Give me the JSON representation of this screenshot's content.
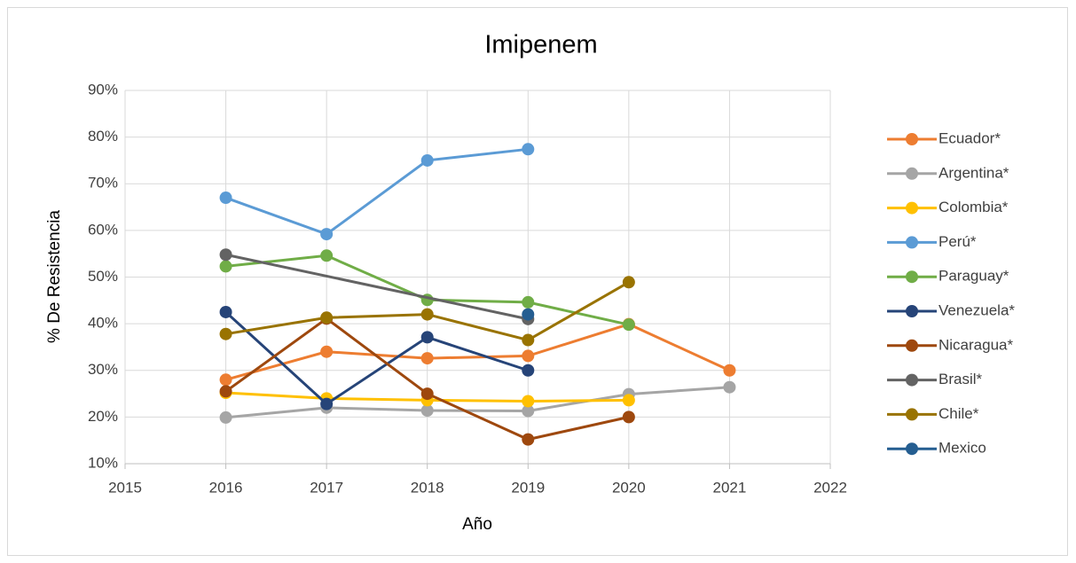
{
  "chart_data": {
    "type": "line",
    "title": "Imipenem",
    "xlabel": "Año",
    "ylabel": "% De Resistencia",
    "xlim": [
      2015,
      2022
    ],
    "xticks": [
      2015,
      2016,
      2017,
      2018,
      2019,
      2020,
      2021,
      2022
    ],
    "ylim": [
      10,
      90
    ],
    "yticks": [
      {
        "value": 10,
        "label": "10%"
      },
      {
        "value": 20,
        "label": "20%"
      },
      {
        "value": 30,
        "label": "30%"
      },
      {
        "value": 40,
        "label": "40%"
      },
      {
        "value": 50,
        "label": "50%"
      },
      {
        "value": 60,
        "label": "60%"
      },
      {
        "value": 70,
        "label": "70%"
      },
      {
        "value": 80,
        "label": "80%"
      },
      {
        "value": 90,
        "label": "90%"
      }
    ],
    "grid": true,
    "legend": "right",
    "series": [
      {
        "name": "Ecuador*",
        "color": "#ED7D31",
        "x": [
          2016,
          2017,
          2018,
          2019,
          2020,
          2021
        ],
        "values": [
          28,
          34,
          32.6,
          33.1,
          39.9,
          30
        ]
      },
      {
        "name": "Argentina*",
        "color": "#A5A5A5",
        "x": [
          2016,
          2017,
          2018,
          2019,
          2020,
          2021
        ],
        "values": [
          19.9,
          22,
          21.4,
          21.3,
          24.9,
          26.4
        ]
      },
      {
        "name": "Colombia*",
        "color": "#FFC000",
        "x": [
          2016,
          2017,
          2018,
          2019,
          2020
        ],
        "values": [
          25.2,
          24,
          23.6,
          23.4,
          23.6
        ]
      },
      {
        "name": "Perú*",
        "color": "#5B9BD5",
        "x": [
          2016,
          2017,
          2018,
          2019
        ],
        "values": [
          67,
          59.2,
          75,
          77.4
        ]
      },
      {
        "name": "Paraguay*",
        "color": "#70AD47",
        "x": [
          2016,
          2017,
          2018,
          2019,
          2020
        ],
        "values": [
          52.3,
          54.6,
          45.1,
          44.6,
          39.8
        ]
      },
      {
        "name": "Venezuela*",
        "color": "#264478",
        "x": [
          2016,
          2017,
          2018,
          2019
        ],
        "values": [
          42.5,
          22.8,
          37.1,
          30
        ]
      },
      {
        "name": "Nicaragua*",
        "color": "#9E480E",
        "x": [
          2016,
          2017,
          2018,
          2019,
          2020
        ],
        "values": [
          25.5,
          41.1,
          25,
          15.2,
          20
        ]
      },
      {
        "name": "Brasil*",
        "color": "#636363",
        "x": [
          2016,
          2019
        ],
        "values": [
          54.8,
          41
        ]
      },
      {
        "name": "Chile*",
        "color": "#997300",
        "x": [
          2016,
          2017,
          2018,
          2019,
          2020
        ],
        "values": [
          37.8,
          41.3,
          42,
          36.5,
          48.9
        ]
      },
      {
        "name": "Mexico",
        "color": "#255E91",
        "x": [
          2019
        ],
        "values": [
          42
        ]
      }
    ]
  }
}
